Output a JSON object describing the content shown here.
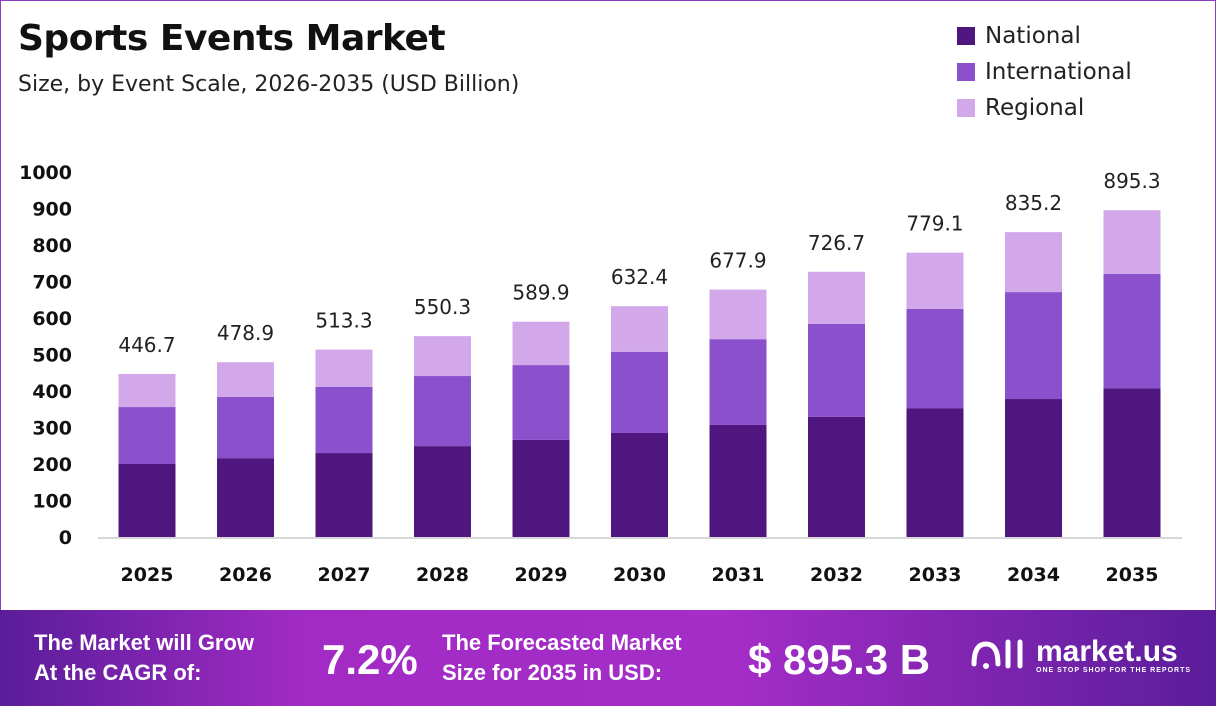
{
  "header": {
    "title": "Sports Events Market",
    "subtitle": "Size, by Event Scale, 2026-2035 (USD Billion)"
  },
  "chart_data": {
    "type": "bar",
    "stacked": true,
    "title": "Sports Events Market",
    "subtitle": "Size, by Event Scale, 2026-2035 (USD Billion)",
    "xlabel": "",
    "ylabel": "",
    "ylim": [
      0,
      1000
    ],
    "yticks": [
      0,
      100,
      200,
      300,
      400,
      500,
      600,
      700,
      800,
      900,
      1000
    ],
    "grid": false,
    "legend_position": "top-right",
    "categories": [
      "2025",
      "2026",
      "2027",
      "2028",
      "2029",
      "2030",
      "2031",
      "2032",
      "2033",
      "2034",
      "2035"
    ],
    "series": [
      {
        "name": "National",
        "color": "#50167f",
        "values": [
          200,
          216,
          230,
          249,
          266,
          285,
          307,
          329,
          353,
          378,
          407
        ]
      },
      {
        "name": "International",
        "color": "#8b50cc",
        "values": [
          156,
          168,
          181,
          192,
          205,
          222,
          235,
          255,
          272,
          293,
          314
        ]
      },
      {
        "name": "Regional",
        "color": "#d2a8ea",
        "values": [
          90.7,
          94.9,
          102.3,
          109.3,
          118.9,
          125.4,
          135.9,
          142.7,
          154.1,
          164.2,
          174.3
        ]
      }
    ],
    "totals": [
      "446.7",
      "478.9",
      "513.3",
      "550.3",
      "589.9",
      "632.4",
      "677.9",
      "726.7",
      "779.1",
      "835.2",
      "895.3"
    ]
  },
  "footer": {
    "cagr_label_1": "The Market will Grow",
    "cagr_label_2": "At the CAGR of:",
    "cagr_value": "7.2%",
    "forecast_label_1": "The Forecasted Market",
    "forecast_label_2": "Size for 2035 in USD:",
    "forecast_value": "$ 895.3 B",
    "logo_name": "market.us",
    "logo_tagline": "ONE STOP SHOP FOR THE REPORTS"
  }
}
